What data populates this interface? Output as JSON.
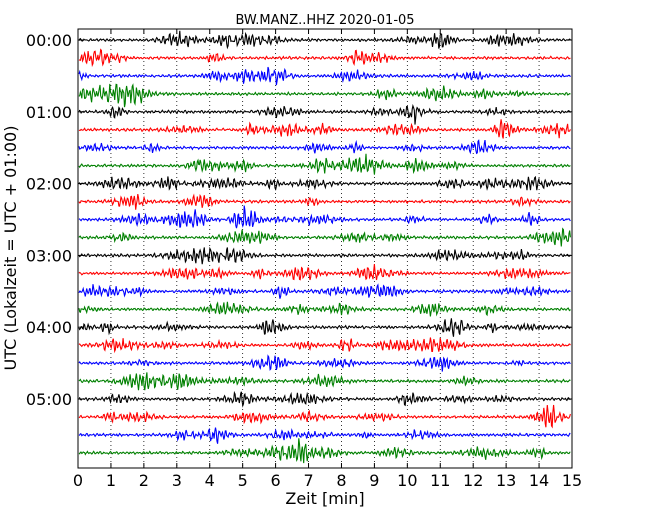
{
  "chart_data": {
    "type": "line",
    "title": "BW.MANZ..HHZ 2020-01-05",
    "xlabel": "Zeit  [min]",
    "ylabel": "UTC (Lokalzeit = UTC + 01:00)",
    "xlim": [
      0,
      15
    ],
    "x_ticks": [
      "0",
      "1",
      "2",
      "3",
      "4",
      "5",
      "6",
      "7",
      "8",
      "9",
      "10",
      "11",
      "12",
      "13",
      "14",
      "15"
    ],
    "y_tick_labels": [
      "00:00",
      "01:00",
      "02:00",
      "03:00",
      "04:00",
      "05:00"
    ],
    "trace_interval_minutes": 15,
    "trace_count": 24,
    "trace_colors": [
      "#000000",
      "#ff0000",
      "#0000ff",
      "#008000"
    ],
    "grid": "dotted vertical lines at each minute"
  }
}
